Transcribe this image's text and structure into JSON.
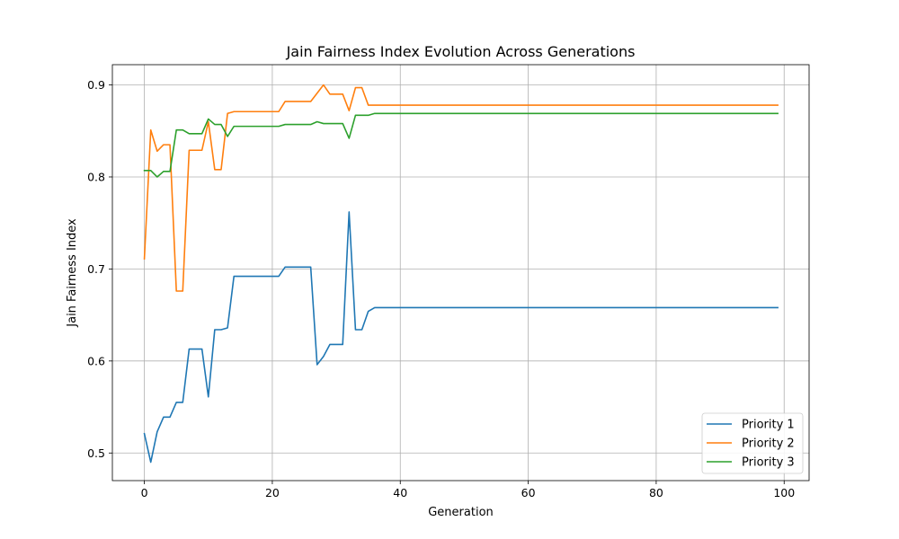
{
  "chart_data": {
    "type": "line",
    "title": "Jain Fairness Index Evolution Across Generations",
    "xlabel": "Generation",
    "ylabel": "Jain Fairness Index",
    "xlim": [
      -5,
      103.9
    ],
    "ylim": [
      0.47,
      0.922
    ],
    "xticks": [
      0,
      20,
      40,
      60,
      80,
      100
    ],
    "yticks": [
      0.5,
      0.6,
      0.7,
      0.8,
      0.9
    ],
    "xtick_labels": [
      "0",
      "20",
      "40",
      "60",
      "80",
      "100"
    ],
    "ytick_labels": [
      "0.5",
      "0.6",
      "0.7",
      "0.8",
      "0.9"
    ],
    "grid": true,
    "legend_position": "lower-right",
    "x": {
      "start": 0,
      "end": 99
    },
    "series": [
      {
        "name": "Priority 1",
        "color": "#1f77b4",
        "values": [
          0.521,
          0.49,
          0.523,
          0.539,
          0.539,
          0.555,
          0.555,
          0.613,
          0.613,
          0.613,
          0.561,
          0.634,
          0.634,
          0.636,
          0.692,
          0.692,
          0.692,
          0.692,
          0.692,
          0.692,
          0.692,
          0.692,
          0.702,
          0.702,
          0.702,
          0.702,
          0.702,
          0.596,
          0.605,
          0.618,
          0.618,
          0.618,
          0.762,
          0.634,
          0.634,
          0.654,
          0.658,
          0.658,
          0.658,
          0.658,
          0.658,
          0.658,
          0.658,
          0.658,
          0.658,
          0.658,
          0.658,
          0.658,
          0.658,
          0.658,
          0.658,
          0.658,
          0.658,
          0.658,
          0.658,
          0.658,
          0.658,
          0.658,
          0.658,
          0.658,
          0.658,
          0.658,
          0.658,
          0.658,
          0.658,
          0.658,
          0.658,
          0.658,
          0.658,
          0.658,
          0.658,
          0.658,
          0.658,
          0.658,
          0.658,
          0.658,
          0.658,
          0.658,
          0.658,
          0.658,
          0.658,
          0.658,
          0.658,
          0.658,
          0.658,
          0.658,
          0.658,
          0.658,
          0.658,
          0.658,
          0.658,
          0.658,
          0.658,
          0.658,
          0.658,
          0.658,
          0.658,
          0.658,
          0.658,
          0.658
        ]
      },
      {
        "name": "Priority 2",
        "color": "#ff7f0e",
        "values": [
          0.711,
          0.851,
          0.828,
          0.835,
          0.835,
          0.676,
          0.676,
          0.829,
          0.829,
          0.829,
          0.86,
          0.808,
          0.808,
          0.869,
          0.871,
          0.871,
          0.871,
          0.871,
          0.871,
          0.871,
          0.871,
          0.871,
          0.882,
          0.882,
          0.882,
          0.882,
          0.882,
          0.891,
          0.9,
          0.89,
          0.89,
          0.89,
          0.872,
          0.897,
          0.897,
          0.878,
          0.878,
          0.878,
          0.878,
          0.878,
          0.878,
          0.878,
          0.878,
          0.878,
          0.878,
          0.878,
          0.878,
          0.878,
          0.878,
          0.878,
          0.878,
          0.878,
          0.878,
          0.878,
          0.878,
          0.878,
          0.878,
          0.878,
          0.878,
          0.878,
          0.878,
          0.878,
          0.878,
          0.878,
          0.878,
          0.878,
          0.878,
          0.878,
          0.878,
          0.878,
          0.878,
          0.878,
          0.878,
          0.878,
          0.878,
          0.878,
          0.878,
          0.878,
          0.878,
          0.878,
          0.878,
          0.878,
          0.878,
          0.878,
          0.878,
          0.878,
          0.878,
          0.878,
          0.878,
          0.878,
          0.878,
          0.878,
          0.878,
          0.878,
          0.878,
          0.878,
          0.878,
          0.878,
          0.878,
          0.878
        ]
      },
      {
        "name": "Priority 3",
        "color": "#2ca02c",
        "values": [
          0.807,
          0.807,
          0.8,
          0.806,
          0.806,
          0.851,
          0.851,
          0.847,
          0.847,
          0.847,
          0.863,
          0.857,
          0.857,
          0.844,
          0.855,
          0.855,
          0.855,
          0.855,
          0.855,
          0.855,
          0.855,
          0.855,
          0.857,
          0.857,
          0.857,
          0.857,
          0.857,
          0.86,
          0.858,
          0.858,
          0.858,
          0.858,
          0.842,
          0.867,
          0.867,
          0.867,
          0.869,
          0.869,
          0.869,
          0.869,
          0.869,
          0.869,
          0.869,
          0.869,
          0.869,
          0.869,
          0.869,
          0.869,
          0.869,
          0.869,
          0.869,
          0.869,
          0.869,
          0.869,
          0.869,
          0.869,
          0.869,
          0.869,
          0.869,
          0.869,
          0.869,
          0.869,
          0.869,
          0.869,
          0.869,
          0.869,
          0.869,
          0.869,
          0.869,
          0.869,
          0.869,
          0.869,
          0.869,
          0.869,
          0.869,
          0.869,
          0.869,
          0.869,
          0.869,
          0.869,
          0.869,
          0.869,
          0.869,
          0.869,
          0.869,
          0.869,
          0.869,
          0.869,
          0.869,
          0.869,
          0.869,
          0.869,
          0.869,
          0.869,
          0.869,
          0.869,
          0.869,
          0.869,
          0.869,
          0.869
        ]
      }
    ]
  }
}
